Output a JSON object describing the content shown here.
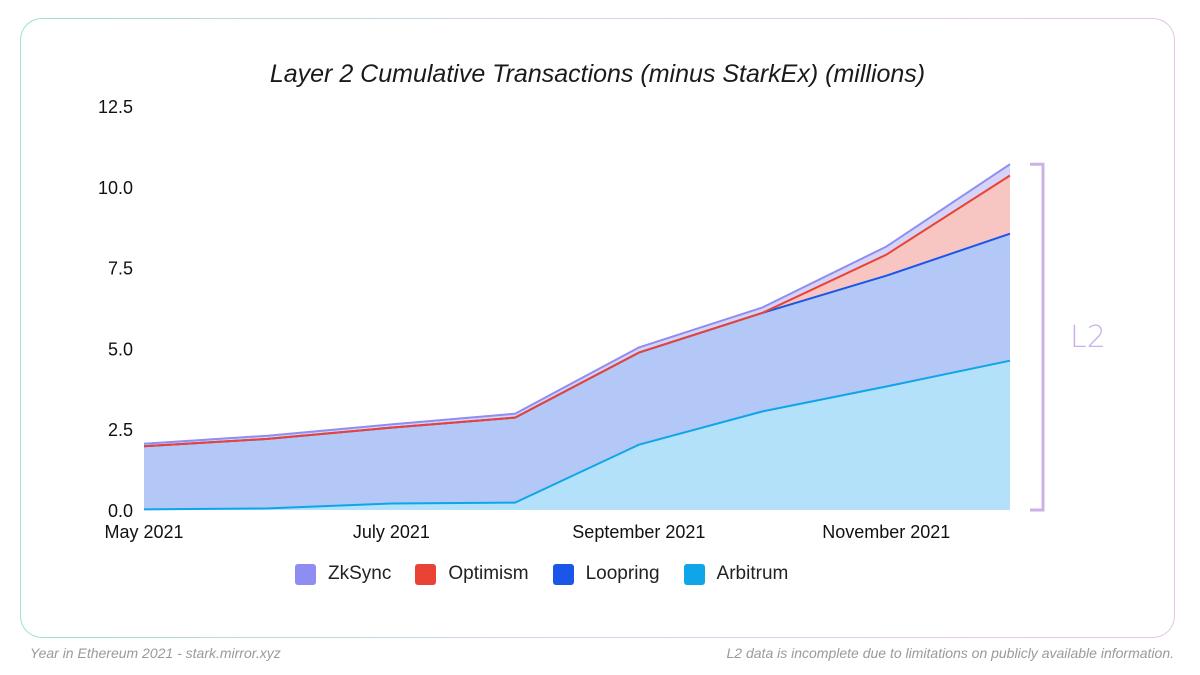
{
  "chart_data": {
    "type": "area",
    "stacked": true,
    "title": "Layer 2 Cumulative Transactions (minus StarkEx) (millions)",
    "xlabel": "",
    "ylabel": "",
    "x": [
      0,
      1,
      2,
      3,
      4,
      5,
      6,
      7
    ],
    "x_tick_labels": [
      {
        "x": 0,
        "label": "May 2021"
      },
      {
        "x": 2,
        "label": "July 2021"
      },
      {
        "x": 4,
        "label": "September 2021"
      },
      {
        "x": 6,
        "label": "November 2021"
      }
    ],
    "ylim": [
      0,
      12.5
    ],
    "y_ticks": [
      0.0,
      2.5,
      5.0,
      7.5,
      10.0,
      12.5
    ],
    "y_tick_labels": [
      "0.0",
      "2.5",
      "5.0",
      "7.5",
      "10.0",
      "12.5"
    ],
    "series": [
      {
        "name": "Arbitrum",
        "values": [
          0.02,
          0.05,
          0.2,
          0.23,
          2.02,
          3.05,
          3.82,
          4.62
        ]
      },
      {
        "name": "Loopring",
        "values": [
          1.95,
          2.15,
          2.35,
          2.63,
          2.85,
          3.05,
          3.43,
          3.93
        ]
      },
      {
        "name": "Optimism",
        "values": [
          0.0,
          0.0,
          0.0,
          0.0,
          0.0,
          0.0,
          0.65,
          1.8
        ]
      },
      {
        "name": "ZkSync",
        "values": [
          0.08,
          0.1,
          0.1,
          0.12,
          0.16,
          0.17,
          0.25,
          0.35
        ]
      }
    ],
    "legend": [
      "ZkSync",
      "Optimism",
      "Loopring",
      "Arbitrum"
    ],
    "legend_position": "bottom",
    "annotations": [
      {
        "text": "L2",
        "type": "bracket",
        "position": "right"
      }
    ]
  },
  "colors": {
    "ZkSync": "#8f8cf2",
    "Optimism": "#ea4335",
    "Loopring": "#1a56e8",
    "Arbitrum": "#0ea5e9",
    "Arbitrum_fill": "#b3e1f9",
    "Loopring_fill": "#b4c8f7",
    "Optimism_fill": "#f7c6c2",
    "ZkSync_fill": "#d5d4f7",
    "bracket": "#cbb2e6"
  },
  "footer": {
    "left": "Year in Ethereum 2021 - stark.mirror.xyz",
    "right": "L2 data is incomplete due to limitations on publicly available information."
  }
}
